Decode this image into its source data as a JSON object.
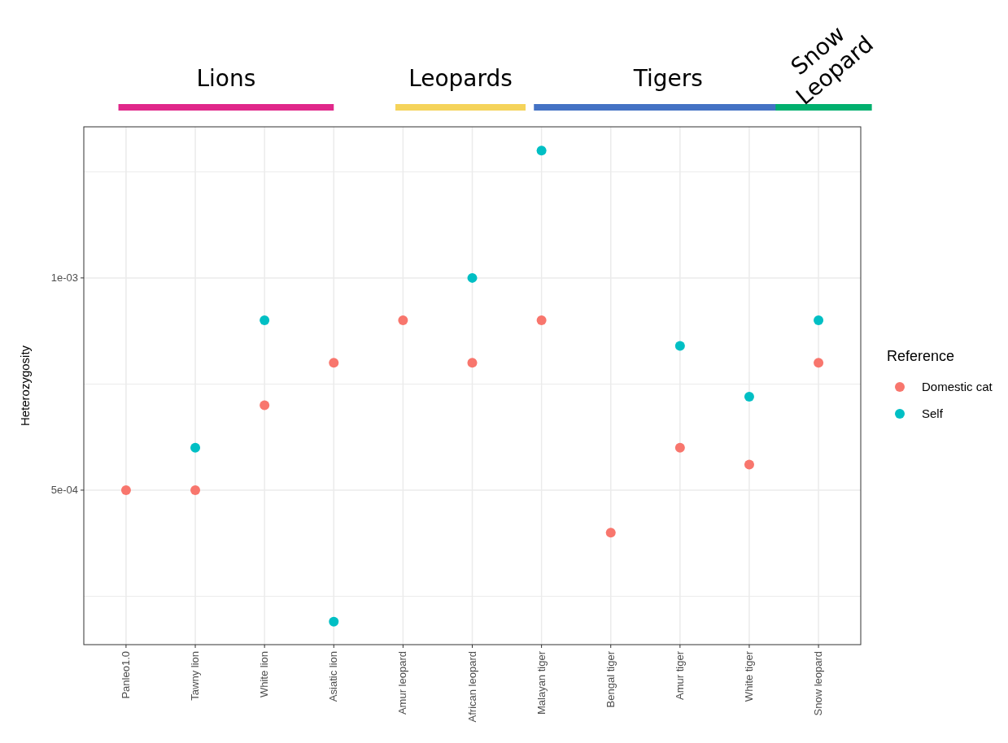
{
  "chart_data": {
    "type": "scatter",
    "ylabel": "Heterozygosity",
    "legend_title": "Reference",
    "legend": "right",
    "grid": true,
    "marker": "circle",
    "categories": [
      "Panleo1.0",
      "Tawny lion",
      "White lion",
      "Asiatic lion",
      "Amur leopard",
      "African leopard",
      "Malayan tiger",
      "Bengal tiger",
      "Amur tiger",
      "White tiger",
      "Snow leopard"
    ],
    "ylim": [
      0.000136,
      0.001356
    ],
    "yticks": [
      {
        "value": 0.00025,
        "label": null
      },
      {
        "value": 0.0005,
        "label": "5e-04"
      },
      {
        "value": 0.00075,
        "label": null
      },
      {
        "value": 0.001,
        "label": "1e-03"
      },
      {
        "value": 0.00125,
        "label": null
      }
    ],
    "series": [
      {
        "name": "Domestic cat",
        "color": "#f8766d",
        "values": [
          0.0005,
          0.0005,
          0.0007,
          0.0008,
          0.0009,
          0.0008,
          0.0009,
          0.0004,
          0.0006,
          0.00056,
          0.0008
        ]
      },
      {
        "name": "Self",
        "color": "#00bfc4",
        "values": [
          null,
          0.0006,
          0.0009,
          0.00019,
          null,
          0.001,
          0.0013,
          null,
          0.00084,
          0.00072,
          0.0009
        ]
      }
    ],
    "annotations": [
      "Lions",
      "Leopards",
      "Tigers",
      "Snow Leopard"
    ]
  }
}
